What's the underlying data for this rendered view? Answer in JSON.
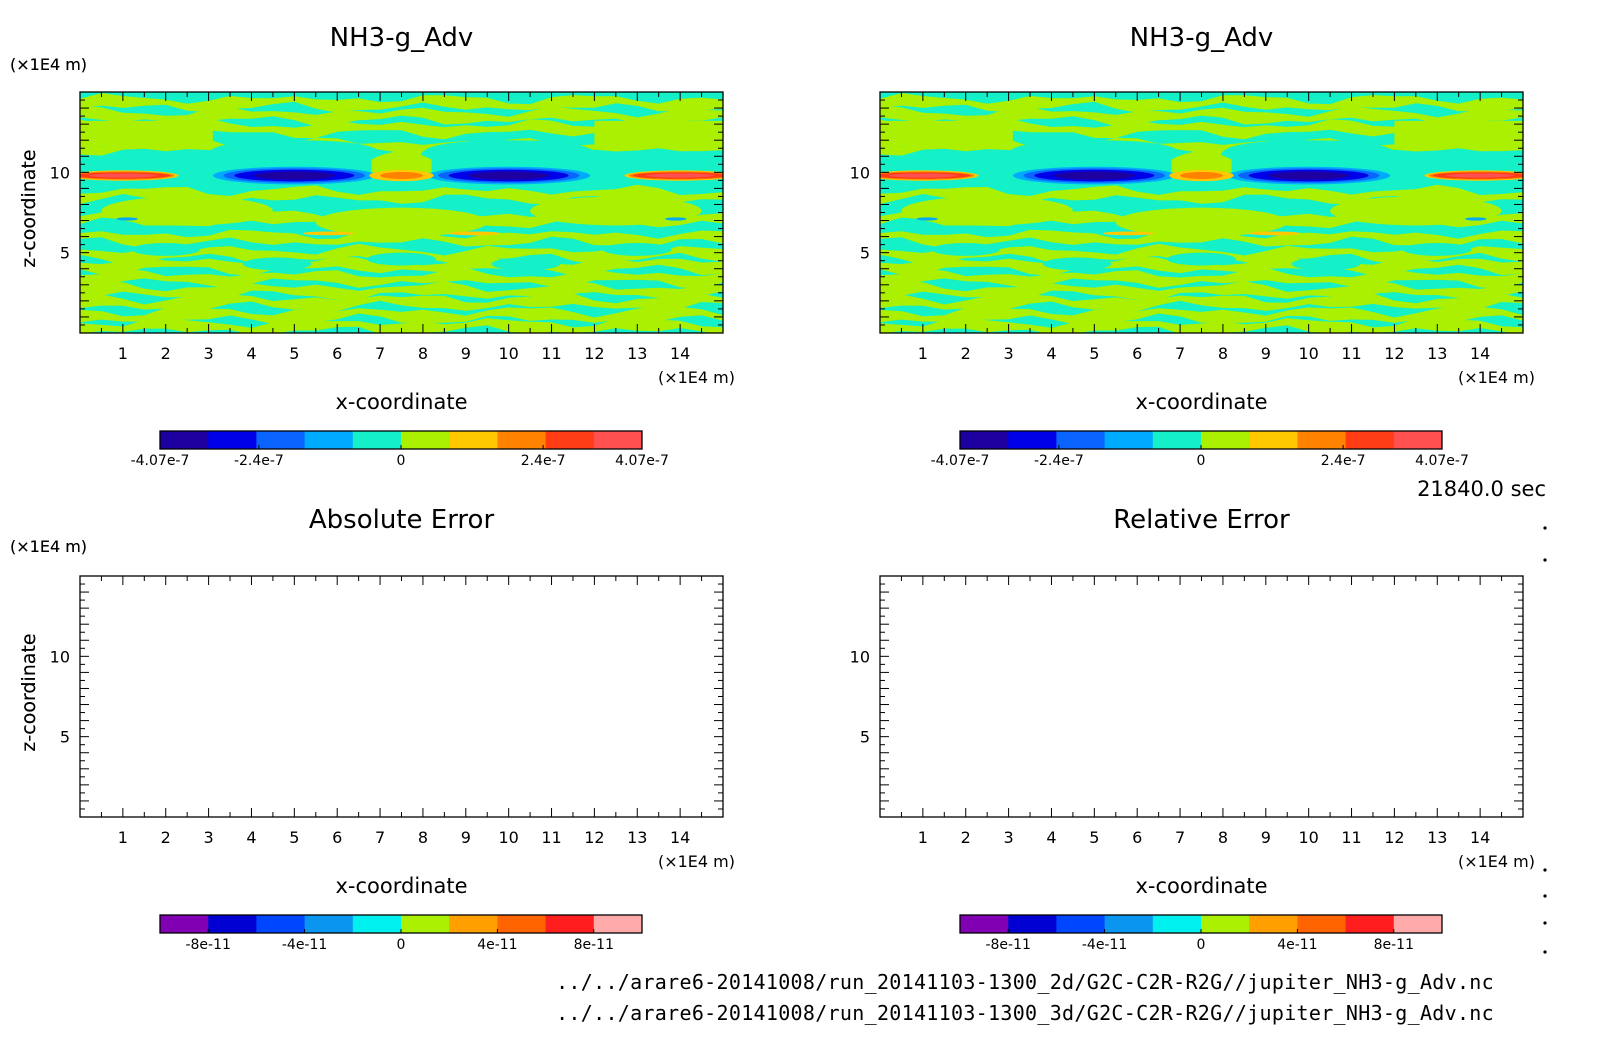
{
  "time_label": "21840.0 sec",
  "files": [
    "../../arare6-20141008/run_20141103-1300_2d/G2C-C2R-R2G//jupiter_NH3-g_Adv.nc",
    "../../arare6-20141008/run_20141103-1300_3d/G2C-C2R-R2G//jupiter_NH3-g_Adv.nc"
  ],
  "colors": {
    "bar_top": [
      "#1e00a0",
      "#0000e8",
      "#0a64ff",
      "#00aaff",
      "#14f0c8",
      "#aaf000",
      "#ffc800",
      "#ff8200",
      "#ff3c14",
      "#ff5050"
    ],
    "bar_bottom": [
      "#8200b4",
      "#0000d2",
      "#0046ff",
      "#0a96f0",
      "#00f0f0",
      "#aaf000",
      "#ffa000",
      "#ff6400",
      "#ff1e1e",
      "#ffaaaa"
    ],
    "field": {
      "background": "#14f0c8",
      "band": "#aaf000",
      "neg_strong": "#0000e8",
      "neg_core": "#1e00a0",
      "neg_mid": "#0a64ff",
      "neg_light": "#00aaff",
      "pos_strong": "#ff3c14",
      "pos_core": "#ff5050",
      "pos_mid": "#ff8200",
      "pos_light": "#ffc800"
    }
  },
  "chart_data": [
    {
      "type": "heatmap",
      "title": "NH3-g_Adv",
      "xlabel": "x-coordinate",
      "ylabel": "z-coordinate",
      "x_unit": "(×1E4 m)",
      "y_unit": "(×1E4 m)",
      "xlim": [
        0,
        15
      ],
      "ylim": [
        0,
        15
      ],
      "x_ticks": [
        1,
        2,
        3,
        4,
        5,
        6,
        7,
        8,
        9,
        10,
        11,
        12,
        13,
        14
      ],
      "y_ticks": [
        5,
        10
      ],
      "colorbar": {
        "min": -4.07e-07,
        "max": 4.07e-07,
        "tick_values": [
          -4.07e-07,
          -2.4e-07,
          0,
          2.4e-07,
          4.07e-07
        ],
        "tick_labels": [
          "-4.07e-7",
          "-2.4e-7",
          "0",
          "2.4e-7",
          "4.07e-7"
        ],
        "levels": 10
      },
      "features": [
        {
          "kind": "negative",
          "x": 5.0,
          "z": 9.8
        },
        {
          "kind": "negative",
          "x": 10.0,
          "z": 9.8
        },
        {
          "kind": "positive",
          "x": 7.5,
          "z": 9.8
        },
        {
          "kind": "positive",
          "x": 1.0,
          "z": 9.8
        },
        {
          "kind": "positive",
          "x": 14.0,
          "z": 9.8
        }
      ]
    },
    {
      "type": "heatmap",
      "title": "NH3-g_Adv",
      "xlabel": "x-coordinate",
      "ylabel": "z-coordinate",
      "x_unit": "(×1E4 m)",
      "y_unit": "(×1E4 m)",
      "xlim": [
        0,
        15
      ],
      "ylim": [
        0,
        15
      ],
      "x_ticks": [
        1,
        2,
        3,
        4,
        5,
        6,
        7,
        8,
        9,
        10,
        11,
        12,
        13,
        14
      ],
      "y_ticks": [
        5,
        10
      ],
      "colorbar": {
        "min": -4.07e-07,
        "max": 4.07e-07,
        "tick_values": [
          -4.07e-07,
          -2.4e-07,
          0,
          2.4e-07,
          4.07e-07
        ],
        "tick_labels": [
          "-4.07e-7",
          "-2.4e-7",
          "0",
          "2.4e-7",
          "4.07e-7"
        ],
        "levels": 10
      },
      "features": [
        {
          "kind": "negative",
          "x": 5.0,
          "z": 9.8
        },
        {
          "kind": "negative",
          "x": 10.0,
          "z": 9.8
        },
        {
          "kind": "positive",
          "x": 7.5,
          "z": 9.8
        },
        {
          "kind": "positive",
          "x": 1.0,
          "z": 9.8
        },
        {
          "kind": "positive",
          "x": 14.0,
          "z": 9.8
        }
      ]
    },
    {
      "type": "heatmap",
      "title": "Absolute Error",
      "xlabel": "x-coordinate",
      "ylabel": "z-coordinate",
      "x_unit": "(×1E4 m)",
      "y_unit": "(×1E4 m)",
      "xlim": [
        0,
        15
      ],
      "ylim": [
        0,
        15
      ],
      "x_ticks": [
        1,
        2,
        3,
        4,
        5,
        6,
        7,
        8,
        9,
        10,
        11,
        12,
        13,
        14
      ],
      "y_ticks": [
        5,
        10
      ],
      "colorbar": {
        "min": -1e-10,
        "max": 1e-10,
        "tick_values": [
          -8e-11,
          -4e-11,
          0,
          4e-11,
          8e-11
        ],
        "tick_labels": [
          "-8e-11",
          "-4e-11",
          "0",
          "4e-11",
          "8e-11"
        ],
        "levels": 10
      },
      "features": []
    },
    {
      "type": "heatmap",
      "title": "Relative Error",
      "xlabel": "x-coordinate",
      "ylabel": "z-coordinate",
      "x_unit": "(×1E4 m)",
      "y_unit": "(×1E4 m)",
      "xlim": [
        0,
        15
      ],
      "ylim": [
        0,
        15
      ],
      "x_ticks": [
        1,
        2,
        3,
        4,
        5,
        6,
        7,
        8,
        9,
        10,
        11,
        12,
        13,
        14
      ],
      "y_ticks": [
        5,
        10
      ],
      "colorbar": {
        "min": -1e-10,
        "max": 1e-10,
        "tick_values": [
          -8e-11,
          -4e-11,
          0,
          4e-11,
          8e-11
        ],
        "tick_labels": [
          "-8e-11",
          "-4e-11",
          "0",
          "4e-11",
          "8e-11"
        ],
        "levels": 10
      },
      "features": []
    }
  ]
}
